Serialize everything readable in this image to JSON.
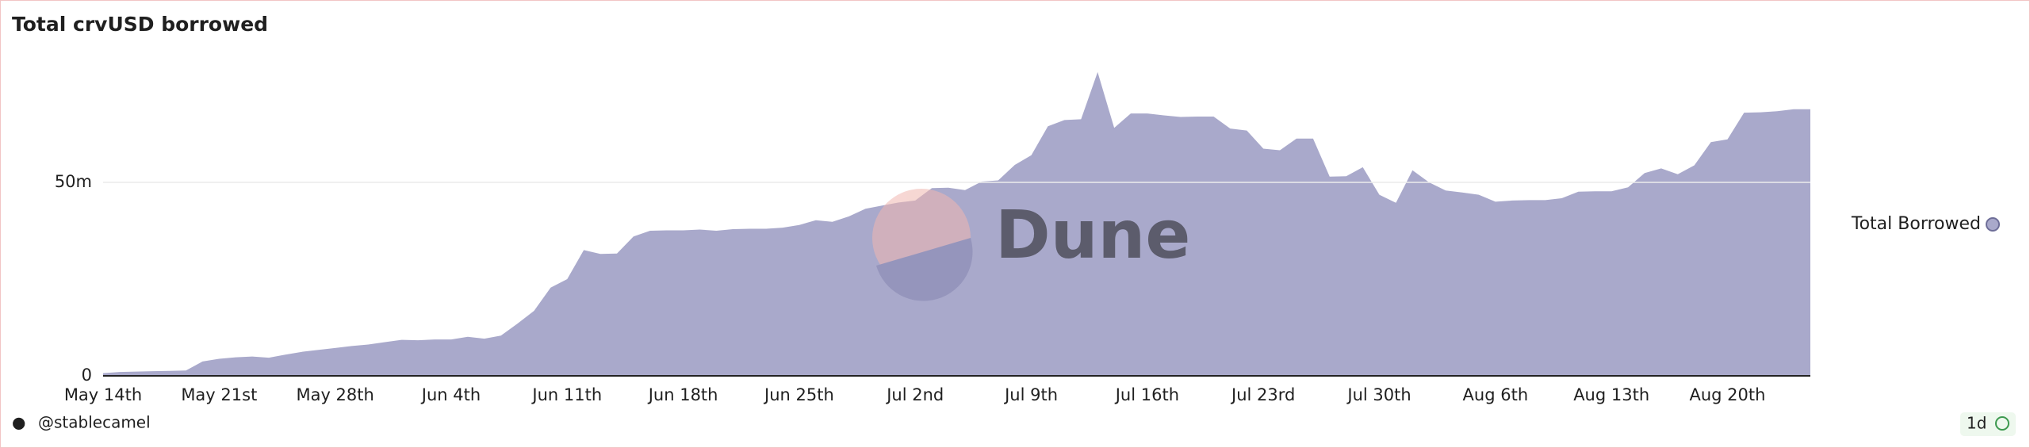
{
  "chart_data": {
    "type": "area",
    "title": "Total crvUSD borrowed",
    "categories": [
      "May 14th",
      null,
      null,
      null,
      null,
      null,
      null,
      "May 21st",
      null,
      null,
      null,
      null,
      null,
      null,
      "May 28th",
      null,
      null,
      null,
      null,
      null,
      null,
      "Jun 4th",
      null,
      null,
      null,
      null,
      null,
      null,
      "Jun 11th",
      null,
      null,
      null,
      null,
      null,
      null,
      "Jun 18th",
      null,
      null,
      null,
      null,
      null,
      null,
      "Jun 25th",
      null,
      null,
      null,
      null,
      null,
      null,
      "Jul 2nd",
      null,
      null,
      null,
      null,
      null,
      null,
      "Jul 9th",
      null,
      null,
      null,
      null,
      null,
      null,
      "Jul 16th",
      null,
      null,
      null,
      null,
      null,
      null,
      "Jul 23rd",
      null,
      null,
      null,
      null,
      null,
      null,
      "Jul 30th",
      null,
      null,
      null,
      null,
      null,
      null,
      "Aug 6th",
      null,
      null,
      null,
      null,
      null,
      null,
      "Aug 13th",
      null,
      null,
      null,
      null,
      null,
      null,
      "Aug 20th",
      null,
      null,
      null,
      null,
      null
    ],
    "series": [
      {
        "name": "Total Borrowed",
        "color": "#a9a9cb",
        "values": [
          700000,
          1000000,
          1100000,
          1200000,
          1300000,
          1400000,
          3700000,
          4400000,
          4800000,
          5000000,
          4700000,
          5500000,
          6200000,
          6700000,
          7200000,
          7700000,
          8100000,
          8700000,
          9300000,
          9200000,
          9400000,
          9400000,
          10100000,
          9600000,
          10400000,
          13500000,
          16800000,
          22800000,
          25000000,
          32500000,
          31500000,
          31600000,
          36000000,
          37500000,
          37600000,
          37600000,
          37800000,
          37500000,
          37900000,
          38000000,
          38000000,
          38300000,
          39000000,
          40200000,
          39800000,
          41200000,
          43200000,
          44000000,
          44800000,
          45300000,
          48500000,
          48600000,
          48000000,
          50200000,
          50500000,
          54500000,
          57000000,
          64500000,
          66100000,
          66300000,
          78500000,
          64100000,
          67800000,
          67800000,
          67300000,
          66900000,
          67000000,
          67000000,
          63900000,
          63400000,
          58700000,
          58300000,
          61300000,
          61300000,
          51500000,
          51600000,
          53900000,
          46800000,
          44700000,
          53100000,
          50000000,
          47900000,
          47400000,
          46800000,
          45000000,
          45300000,
          45400000,
          45400000,
          45900000,
          47600000,
          47700000,
          47700000,
          48700000,
          52400000,
          53600000,
          52100000,
          54400000,
          60400000,
          61100000,
          68000000,
          68100000,
          68400000,
          68900000,
          68900000
        ]
      }
    ],
    "ylim": [
      0,
      87000000
    ],
    "yticks": [
      0,
      {
        "value": 50000000,
        "label": "50m"
      }
    ],
    "grid": true,
    "legend": "right",
    "watermark": "Dune",
    "author": "@stablecamel",
    "refresh": "1d"
  }
}
